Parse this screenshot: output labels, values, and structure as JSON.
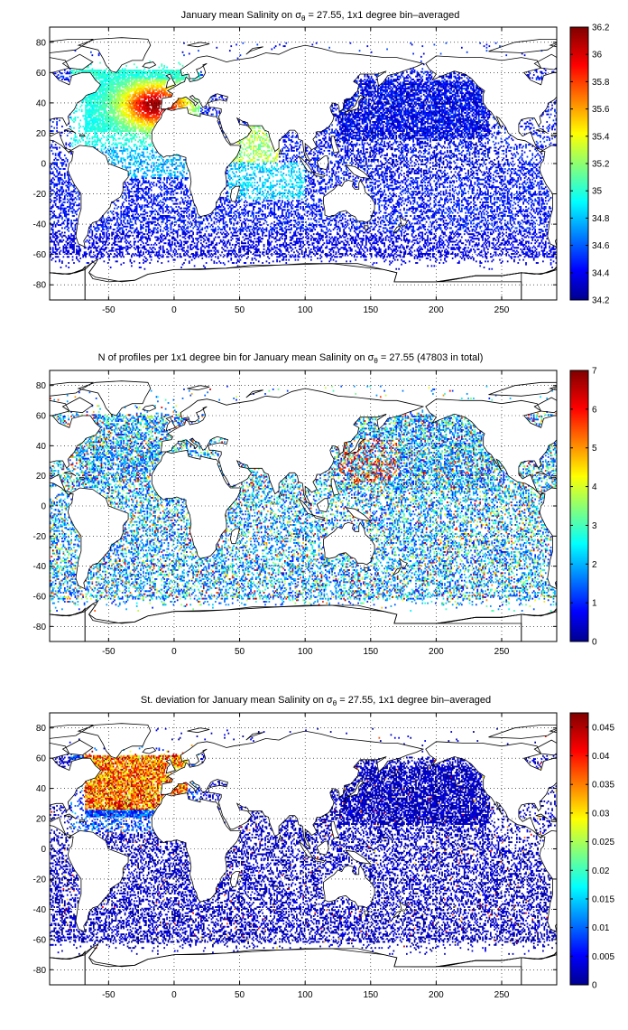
{
  "figure": {
    "width": 696,
    "height": 1140
  },
  "chart_data": [
    {
      "type": "heatmap",
      "title": "January mean Salinity on σθ = 27.55, 1x1 degree bin–averaged",
      "title_parts": {
        "pre": "January mean Salinity on ",
        "sym": "σ",
        "sub": "θ",
        "post": " = 27.55, 1x1 degree bin–averaged"
      },
      "xlim": [
        -95,
        292
      ],
      "ylim": [
        -90,
        90
      ],
      "xticks": [
        -50,
        0,
        50,
        100,
        150,
        200,
        250
      ],
      "yticks": [
        -80,
        -60,
        -40,
        -20,
        0,
        20,
        40,
        60,
        80
      ],
      "grid": true,
      "colorbar": {
        "min": 34.2,
        "max": 36.2,
        "ticks": [
          34.2,
          34.4,
          34.6,
          34.8,
          35,
          35.2,
          35.4,
          35.6,
          35.8,
          36,
          36.2
        ]
      },
      "field": "salinity"
    },
    {
      "type": "heatmap",
      "title": "N of profiles per 1x1 degree bin for January mean Salinity on σθ = 27.55 (47803 in total)",
      "title_parts": {
        "pre": "N of profiles per 1x1 degree bin for January mean Salinity on ",
        "sym": "σ",
        "sub": "θ",
        "post": " = 27.55 (47803 in total)"
      },
      "xlim": [
        -95,
        292
      ],
      "ylim": [
        -90,
        90
      ],
      "xticks": [
        -50,
        0,
        50,
        100,
        150,
        200,
        250
      ],
      "yticks": [
        -80,
        -60,
        -40,
        -20,
        0,
        20,
        40,
        60,
        80
      ],
      "grid": true,
      "colorbar": {
        "min": 0,
        "max": 7,
        "ticks": [
          0,
          1,
          2,
          3,
          4,
          5,
          6,
          7
        ]
      },
      "field": "count"
    },
    {
      "type": "heatmap",
      "title": "St. deviation for January mean Salinity on σθ = 27.55, 1x1 degree bin–averaged",
      "title_parts": {
        "pre": "St. deviation for January mean Salinity on ",
        "sym": "σ",
        "sub": "θ",
        "post": " = 27.55, 1x1 degree bin–averaged"
      },
      "xlim": [
        -95,
        292
      ],
      "ylim": [
        -90,
        90
      ],
      "xticks": [
        -50,
        0,
        50,
        100,
        150,
        200,
        250
      ],
      "yticks": [
        -80,
        -60,
        -40,
        -20,
        0,
        20,
        40,
        60,
        80
      ],
      "grid": true,
      "colorbar": {
        "min": 0,
        "max": 0.0475,
        "ticks": [
          0,
          0.005,
          0.01,
          0.015,
          0.02,
          0.025,
          0.03,
          0.035,
          0.04,
          0.045
        ]
      },
      "field": "stdev"
    }
  ]
}
